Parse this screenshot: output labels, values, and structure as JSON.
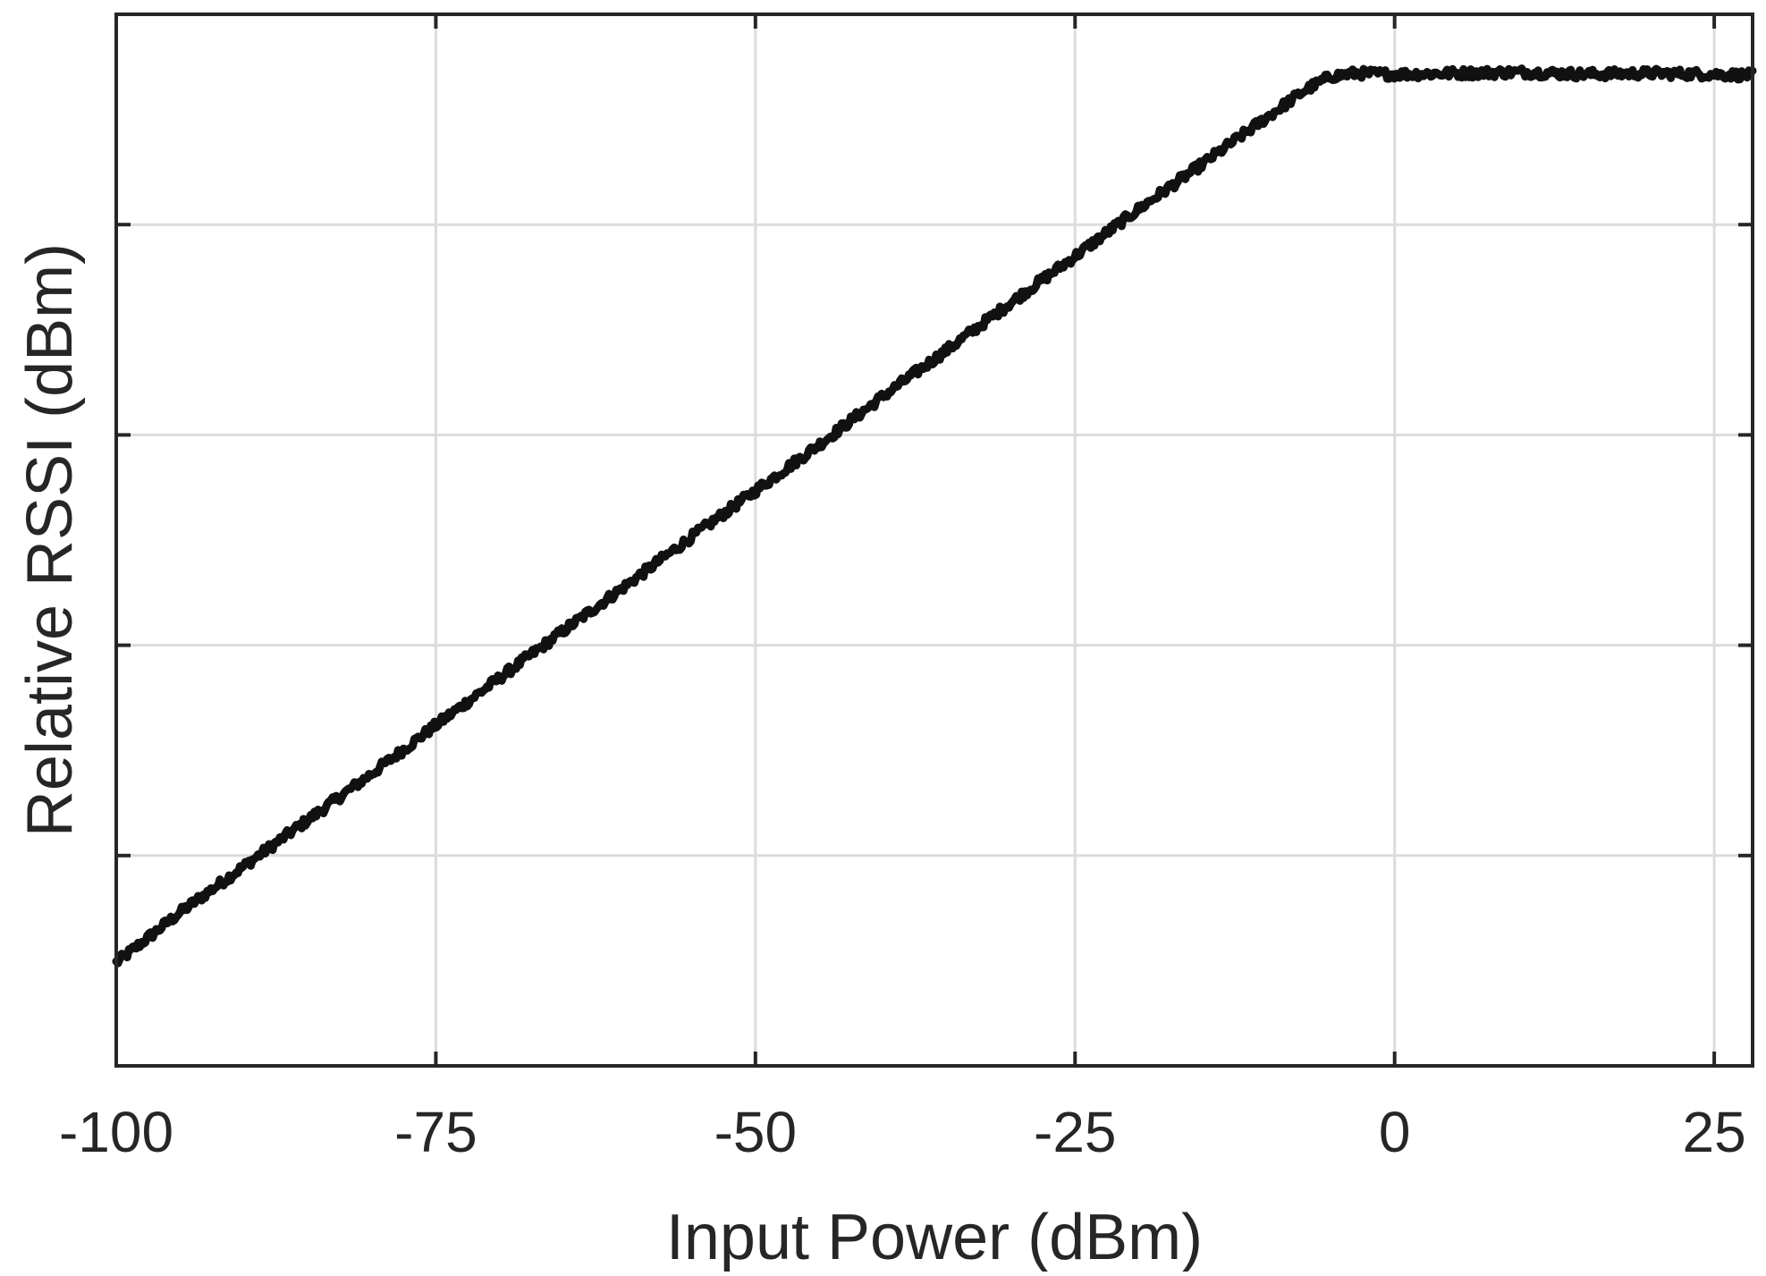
{
  "chart_data": {
    "type": "line",
    "title": "",
    "xlabel": "Input Power (dBm)",
    "ylabel": "Relative RSSI (dBm)",
    "xlim": [
      -100,
      28
    ],
    "ylim": [
      0,
      100
    ],
    "xticks": [
      -100,
      -75,
      -50,
      -25,
      0,
      25
    ],
    "xtick_labels": [
      "-100",
      "-75",
      "-50",
      "-25",
      "0",
      "25"
    ],
    "yticks": [
      20,
      40,
      60,
      80
    ],
    "ytick_labels": [],
    "grid": true,
    "legend": "none",
    "series": [
      {
        "name": "",
        "color": "#111111",
        "x": [
          -100,
          -95,
          -90,
          -85,
          -80,
          -75,
          -70,
          -65,
          -60,
          -55,
          -50,
          -45,
          -40,
          -35,
          -30,
          -25,
          -20,
          -15,
          -10,
          -7,
          -5,
          -3,
          0,
          5,
          10,
          15,
          20,
          25,
          28
        ],
        "y": [
          9.8,
          14.6,
          19.0,
          23.4,
          27.8,
          32.4,
          36.9,
          41.4,
          45.8,
          50.3,
          54.7,
          59.1,
          63.7,
          68.1,
          72.6,
          77.0,
          81.5,
          85.8,
          90.2,
          92.8,
          94.1,
          94.4,
          94.3,
          94.4,
          94.5,
          94.3,
          94.4,
          94.3,
          94.2
        ]
      }
    ]
  }
}
